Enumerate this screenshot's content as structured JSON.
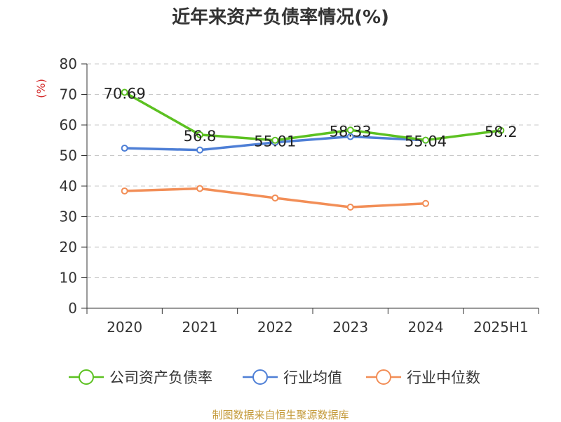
{
  "chart_data": {
    "type": "line",
    "title": "近年来资产负债率情况(%)",
    "ylabel": "(%)",
    "ylim": [
      0,
      80
    ],
    "yticks": [
      0,
      10,
      20,
      30,
      40,
      50,
      60,
      70,
      80
    ],
    "categories": [
      "2020",
      "2021",
      "2022",
      "2023",
      "2024",
      "2025H1"
    ],
    "grid": true,
    "legend_position": "bottom",
    "series": [
      {
        "name": "公司资产负债率",
        "color": "#5cc121",
        "values": [
          70.69,
          56.8,
          55.01,
          58.33,
          55.04,
          58.2
        ],
        "labels": [
          "70.69",
          "56.8",
          "55.01",
          "58.33",
          "55.04",
          "58.2"
        ]
      },
      {
        "name": "行业均值",
        "color": "#4e7fd6",
        "values": [
          52.4,
          51.8,
          54.3,
          56.2,
          55.0,
          null
        ]
      },
      {
        "name": "行业中位数",
        "color": "#f28e57",
        "values": [
          38.4,
          39.2,
          36.1,
          33.1,
          34.3,
          null
        ]
      }
    ]
  },
  "source_text": "制图数据来自恒生聚源数据库"
}
